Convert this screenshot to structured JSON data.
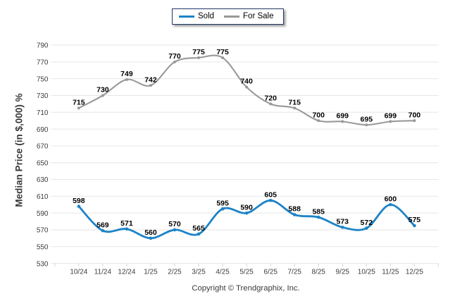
{
  "chart_data": {
    "type": "line",
    "title": "",
    "xlabel": "",
    "ylabel": "Median Price (in $,000) %",
    "categories": [
      "10/24",
      "11/24",
      "12/24",
      "1/25",
      "2/25",
      "3/25",
      "4/25",
      "5/25",
      "6/25",
      "7/25",
      "8/25",
      "9/25",
      "10/25",
      "11/25",
      "12/25"
    ],
    "series": [
      {
        "name": "Sold",
        "color": "#1c83c6",
        "values": [
          598,
          569,
          571,
          560,
          570,
          565,
          595,
          590,
          605,
          588,
          585,
          573,
          572,
          600,
          575
        ]
      },
      {
        "name": "For Sale",
        "color": "#999999",
        "values": [
          715,
          730,
          749,
          742,
          770,
          775,
          775,
          740,
          720,
          715,
          700,
          699,
          695,
          699,
          700
        ]
      }
    ],
    "ylim": [
      530,
      790
    ],
    "ytick_step": 20,
    "grid": "horizontal",
    "legend_position": "top-center",
    "curve": "spline",
    "data_labels": true
  },
  "footer": {
    "copyright": "Copyright © Trendgraphix, Inc."
  },
  "style": {
    "legend_border": "#1f3864",
    "grid_color": "#e6e6e6",
    "axis_tick_color": "#d2d2d2",
    "tick_label_color": "#3d3d3d",
    "data_label_color": "#000000",
    "background": "#ffffff"
  }
}
